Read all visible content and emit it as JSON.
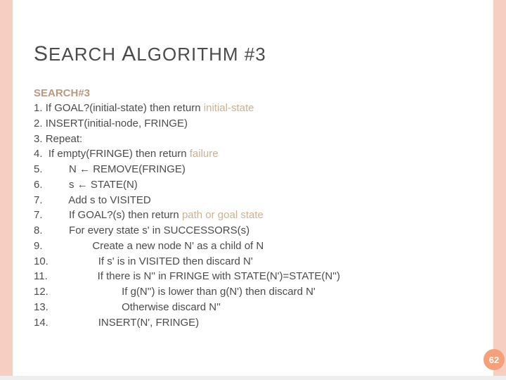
{
  "colors": {
    "sidebar": "#f7cfc2",
    "title_text": "#4b4b4b",
    "body_text": "#4b4b4b",
    "heading_text": "#bb9980",
    "highlight_text": "#cdb08f",
    "badge_bg": "#f4a07a",
    "badge_text": "#ffffff",
    "bottom_bar": "#eeeeee",
    "background": "#ffffff"
  },
  "title": {
    "word1_cap": "S",
    "word1_rest": "EARCH",
    "word2_cap": "A",
    "word2_rest": "LGORITHM",
    "suffix": " #3"
  },
  "algo_heading": "SEARCH#3",
  "page_number": "62",
  "lines": [
    {
      "num": "1.",
      "indent": 0,
      "pre": "If GOAL?(initial-state) then return ",
      "hl": "initial-state",
      "post": ""
    },
    {
      "num": "2.",
      "indent": 0,
      "pre": "INSERT(initial-node, FRINGE)",
      "hl": "",
      "post": ""
    },
    {
      "num": "3.",
      "indent": 0,
      "pre": "Repeat:",
      "hl": "",
      "post": ""
    },
    {
      "num": "4.",
      "indent": 0,
      "pre": " If empty(FRINGE) then return ",
      "hl": "failure",
      "post": ""
    },
    {
      "num": "5.",
      "indent": 1,
      "pre": "N ← REMOVE(FRINGE)",
      "hl": "",
      "post": ""
    },
    {
      "num": "6.",
      "indent": 1,
      "pre": "s ← STATE(N)",
      "hl": "",
      "post": ""
    },
    {
      "num": "7.",
      "indent": 1,
      "pre": "Add s to VISITED",
      "hl": "",
      "post": ""
    },
    {
      "num": "7.",
      "indent": 1,
      "pre": "If GOAL?(s) then return ",
      "hl": "path or goal state",
      "post": ""
    },
    {
      "num": "8.",
      "indent": 1,
      "pre": "For every state s' in SUCCESSORS(s)",
      "hl": "",
      "post": ""
    },
    {
      "num": "9.",
      "indent": 2,
      "pre": "Create a new node N' as a child of N",
      "hl": "",
      "post": ""
    },
    {
      "num": "10.",
      "indent": 2,
      "pre": "If s' is in VISITED then discard N'",
      "hl": "",
      "post": ""
    },
    {
      "num": "11.",
      "indent": 2,
      "pre": "If there is N'' in FRINGE with STATE(N')=STATE(N'')",
      "hl": "",
      "post": ""
    },
    {
      "num": "12.",
      "indent": 3,
      "pre": "If g(N'') is lower than g(N') then discard N'",
      "hl": "",
      "post": ""
    },
    {
      "num": "13.",
      "indent": 3,
      "pre": "Otherwise discard N''",
      "hl": "",
      "post": ""
    },
    {
      "num": "14.",
      "indent": 2,
      "pre": "INSERT(N', FRINGE)",
      "hl": "",
      "post": ""
    }
  ]
}
